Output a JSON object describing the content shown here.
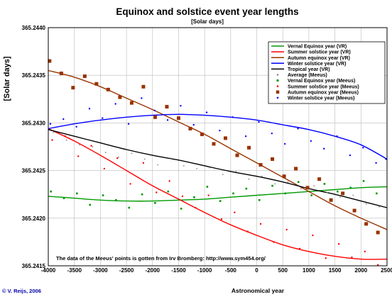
{
  "chart_data": {
    "type": "line",
    "title": "Equinox and solstice event year lengths",
    "subtitle": "[Solar days]",
    "ylabel": "[Solar days]",
    "xlabel": "Astronomical year",
    "xlim": [
      -4000,
      2500
    ],
    "ylim": [
      365.2415,
      365.244
    ],
    "x_ticks": [
      -4000,
      -3500,
      -3000,
      -2500,
      -2000,
      -1500,
      -1000,
      -500,
      0,
      500,
      1000,
      1500,
      2000,
      2500
    ],
    "y_ticks": [
      365.2415,
      365.242,
      365.2425,
      365.243,
      365.2435,
      365.244
    ],
    "y_tick_labels": [
      "365.2415",
      "365.2420",
      "365.2425",
      "365.2430",
      "365.2435",
      "365.2440"
    ],
    "grid": true,
    "legend_position": "top-right",
    "annotation": "The data of the Meeus' points is gotten from Irv Bromberg: http://www.sym454.org/",
    "credit": "© V. Reijs, 2006",
    "series": [
      {
        "name": "Vernal Equinox year (VR)",
        "kind": "line",
        "color": "#009900",
        "x": [
          -4000,
          -3500,
          -3000,
          -2500,
          -2000,
          -1500,
          -1000,
          -500,
          0,
          500,
          1000,
          1500,
          2000,
          2500
        ],
        "y": [
          365.24223,
          365.24221,
          365.24219,
          365.24218,
          365.24218,
          365.24219,
          365.2422,
          365.24222,
          365.24224,
          365.24226,
          365.24228,
          365.2423,
          365.24232,
          365.24233
        ]
      },
      {
        "name": "Summer solstice year (VR)",
        "kind": "line",
        "color": "#ff0000",
        "x": [
          -4000,
          -3500,
          -3000,
          -2500,
          -2000,
          -1500,
          -1000,
          -500,
          0,
          500,
          1000,
          1500,
          2000,
          2500
        ],
        "y": [
          365.24294,
          365.24281,
          365.24266,
          365.2425,
          365.24234,
          365.2422,
          365.24206,
          365.24193,
          365.24182,
          365.24172,
          365.24165,
          365.2416,
          365.24157,
          365.24157
        ]
      },
      {
        "name": "Autumn equinox year (VR)",
        "kind": "line",
        "color": "#993300",
        "x": [
          -4000,
          -3500,
          -3000,
          -2500,
          -2000,
          -1500,
          -1000,
          -500,
          0,
          500,
          1000,
          1500,
          2000,
          2500
        ],
        "y": [
          365.24355,
          365.24348,
          365.24338,
          365.24326,
          365.24314,
          365.24301,
          365.24288,
          365.24273,
          365.24258,
          365.24243,
          365.24228,
          365.24213,
          365.242,
          365.24188
        ]
      },
      {
        "name": "Winter solstice year (VR)",
        "kind": "line",
        "color": "#0000ff",
        "x": [
          -4000,
          -3500,
          -3000,
          -2500,
          -2000,
          -1500,
          -1000,
          -500,
          0,
          500,
          1000,
          1500,
          2000,
          2500
        ],
        "y": [
          365.24294,
          365.24299,
          365.24303,
          365.24306,
          365.24308,
          365.24309,
          365.24308,
          365.24306,
          365.24303,
          365.24298,
          365.24293,
          365.24286,
          365.24277,
          365.24262
        ]
      },
      {
        "name": "Tropical year (VR)",
        "kind": "line",
        "color": "#000000",
        "x": [
          -4000,
          -3500,
          -3000,
          -2500,
          -2000,
          -1500,
          -1000,
          -500,
          0,
          500,
          1000,
          1500,
          2000,
          2500
        ],
        "y": [
          365.24293,
          365.24286,
          365.24279,
          365.24272,
          365.24266,
          365.24261,
          365.24255,
          365.24249,
          365.24244,
          365.24238,
          365.24231,
          365.24225,
          365.24218,
          365.24211
        ]
      },
      {
        "name": "Average (Meeus)",
        "kind": "points",
        "color": "#888888",
        "marker": "dot",
        "x": [
          -3900,
          -3650,
          -3400,
          -3150,
          -2900,
          -2650,
          -2400,
          -2150,
          -1900,
          -1650,
          -1400,
          -1150,
          -900,
          -650,
          -400,
          -150,
          100,
          350,
          600,
          850,
          1100,
          1350,
          1600,
          1850,
          2100,
          2350
        ],
        "y": [
          365.2429,
          365.24282,
          365.24277,
          365.24275,
          365.24269,
          365.24264,
          365.24268,
          365.24262,
          365.24256,
          365.24263,
          365.24255,
          365.24252,
          365.24253,
          365.24246,
          365.24249,
          365.24241,
          365.24244,
          365.24236,
          365.24238,
          365.24231,
          365.24234,
          365.24227,
          365.24222,
          365.24224,
          365.24215,
          365.24212
        ]
      },
      {
        "name": "Vernal Equinox year (Meeus)",
        "kind": "points",
        "color": "#009900",
        "marker": "square",
        "x": [
          -3950,
          -3700,
          -3450,
          -3200,
          -2950,
          -2700,
          -2450,
          -2200,
          -1950,
          -1700,
          -1450,
          -1200,
          -950,
          -700,
          -450,
          -200,
          50,
          300,
          550,
          800,
          1050,
          1300,
          1550,
          1800,
          2050,
          2300
        ],
        "y": [
          365.24228,
          365.24221,
          365.24226,
          365.24214,
          365.24224,
          365.24219,
          365.24211,
          365.24225,
          365.24216,
          365.24228,
          365.2421,
          365.24222,
          365.24233,
          365.24218,
          365.24226,
          365.24231,
          365.24219,
          365.24234,
          365.24226,
          365.24238,
          365.24224,
          365.24236,
          365.24228,
          365.24232,
          365.24239,
          365.24226
        ]
      },
      {
        "name": "Summer solstice year (Meeus)",
        "kind": "points",
        "color": "#ff0000",
        "marker": "dot",
        "x": [
          -3925,
          -3675,
          -3425,
          -3175,
          -2925,
          -2675,
          -2425,
          -2175,
          -1925,
          -1675,
          -1425,
          -1175,
          -925,
          -675,
          -425,
          -175,
          75,
          325,
          575,
          825,
          1075,
          1325,
          1575,
          1825,
          2075,
          2325
        ],
        "y": [
          365.24282,
          365.24286,
          365.24265,
          365.24276,
          365.24252,
          365.24263,
          365.24236,
          365.24258,
          365.24227,
          365.24239,
          365.24223,
          365.24211,
          365.24224,
          365.24199,
          365.24206,
          365.24186,
          365.24194,
          365.24175,
          365.24188,
          365.24168,
          365.24182,
          365.24158,
          365.24173,
          365.24159,
          365.24165,
          365.24151
        ]
      },
      {
        "name": "Autumn equinox year (Meeus)",
        "kind": "points",
        "color": "#993300",
        "marker": "square",
        "x": [
          -3975,
          -3750,
          -3525,
          -3300,
          -3075,
          -2850,
          -2625,
          -2400,
          -2175,
          -1950,
          -1725,
          -1500,
          -1275,
          -1050,
          -825,
          -600,
          -375,
          -150,
          75,
          300,
          525,
          750,
          975,
          1200,
          1425,
          1650,
          1875,
          2100,
          2325
        ],
        "y": [
          365.24365,
          365.24352,
          365.24337,
          365.24349,
          365.24341,
          365.24335,
          365.24327,
          365.24321,
          365.24338,
          365.24306,
          365.24317,
          365.24305,
          365.24294,
          365.24288,
          365.24278,
          365.24284,
          365.24266,
          365.24274,
          365.24256,
          365.24262,
          365.24244,
          365.24252,
          365.24232,
          365.24241,
          365.24219,
          365.24226,
          365.24208,
          365.24194,
          365.24185
        ]
      },
      {
        "name": "Winter solstice year (Meeus)",
        "kind": "points",
        "color": "#0000ff",
        "marker": "dot",
        "x": [
          -3960,
          -3710,
          -3460,
          -3210,
          -2960,
          -2710,
          -2460,
          -2210,
          -1960,
          -1710,
          -1460,
          -1210,
          -960,
          -710,
          -460,
          -210,
          40,
          290,
          540,
          790,
          1040,
          1290,
          1540,
          1790,
          2040,
          2290,
          2480
        ],
        "y": [
          365.24299,
          365.24304,
          365.24296,
          365.24315,
          365.24305,
          365.2432,
          365.24299,
          365.24326,
          365.24313,
          365.24303,
          365.24318,
          365.24298,
          365.24311,
          365.24292,
          365.24306,
          365.24286,
          365.24301,
          365.24289,
          365.24278,
          365.24294,
          365.24281,
          365.24273,
          365.24286,
          365.24266,
          365.24274,
          365.24258,
          365.24262
        ]
      }
    ]
  }
}
